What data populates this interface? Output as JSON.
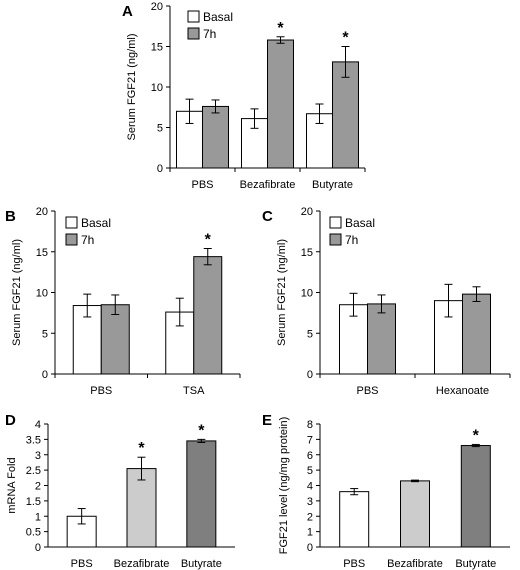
{
  "colors": {
    "basal": "#ffffff",
    "h7": "#999999",
    "bar_outline": "#000000"
  },
  "chart_data": [
    {
      "panel": "A",
      "type": "bar",
      "ylabel": "Serum FGF21 (ng/ml)",
      "ylim": [
        0,
        20
      ],
      "yticks": [
        "0",
        "5",
        "10",
        "15",
        "20"
      ],
      "categories": [
        "PBS",
        "Bezafibrate",
        "Butyrate"
      ],
      "series": [
        {
          "name": "Basal",
          "values": [
            7.0,
            6.1,
            6.7
          ],
          "errors": [
            1.5,
            1.2,
            1.2
          ]
        },
        {
          "name": "7h",
          "values": [
            7.6,
            15.8,
            13.1
          ],
          "errors": [
            0.8,
            0.4,
            1.9
          ]
        }
      ],
      "significance": [
        {
          "series": 1,
          "category": 1,
          "mark": "*"
        },
        {
          "series": 1,
          "category": 2,
          "mark": "*"
        }
      ],
      "legend": "top-left"
    },
    {
      "panel": "B",
      "type": "bar",
      "ylabel": "Serum FGF21 (ng/ml)",
      "ylim": [
        0,
        20
      ],
      "yticks": [
        "0",
        "5",
        "10",
        "15",
        "20"
      ],
      "categories": [
        "PBS",
        "TSA"
      ],
      "series": [
        {
          "name": "Basal",
          "values": [
            8.4,
            7.6
          ],
          "errors": [
            1.4,
            1.7
          ]
        },
        {
          "name": "7h",
          "values": [
            8.5,
            14.4
          ],
          "errors": [
            1.2,
            1.0
          ]
        }
      ],
      "significance": [
        {
          "series": 1,
          "category": 1,
          "mark": "*"
        }
      ],
      "legend": "top-left"
    },
    {
      "panel": "C",
      "type": "bar",
      "ylabel": "Serum FGF21 (ng/ml)",
      "ylim": [
        0,
        20
      ],
      "yticks": [
        "0",
        "5",
        "10",
        "15",
        "20"
      ],
      "categories": [
        "PBS",
        "Hexanoate"
      ],
      "series": [
        {
          "name": "Basal",
          "values": [
            8.5,
            9.0
          ],
          "errors": [
            1.4,
            2.0
          ]
        },
        {
          "name": "7h",
          "values": [
            8.6,
            9.8
          ],
          "errors": [
            1.1,
            0.9
          ]
        }
      ],
      "significance": [],
      "legend": "top-left"
    },
    {
      "panel": "D",
      "type": "bar",
      "ylabel": "mRNA Fold",
      "ylim": [
        0,
        4
      ],
      "yticks": [
        "0",
        "0.5",
        "1",
        "1.5",
        "2",
        "2.5",
        "3",
        "3.5",
        "4"
      ],
      "categories": [
        "PBS",
        "Bezafibrate",
        "Butyrate"
      ],
      "values": [
        1.0,
        2.55,
        3.45
      ],
      "errors": [
        0.25,
        0.37,
        0.05
      ],
      "bar_colors": [
        "#ffffff",
        "#cccccc",
        "#7f7f7f"
      ],
      "significance": [
        {
          "category": 1,
          "mark": "*"
        },
        {
          "category": 2,
          "mark": "*"
        }
      ]
    },
    {
      "panel": "E",
      "type": "bar",
      "ylabel": "FGF21 level (ng/mg protein)",
      "ylim": [
        0,
        8
      ],
      "yticks": [
        "0",
        "1",
        "2",
        "3",
        "4",
        "5",
        "6",
        "7",
        "8"
      ],
      "categories": [
        "PBS",
        "Bezafibrate",
        "Butyrate"
      ],
      "values": [
        3.6,
        4.3,
        6.6
      ],
      "errors": [
        0.2,
        0.05,
        0.07
      ],
      "bar_colors": [
        "#ffffff",
        "#cccccc",
        "#7f7f7f"
      ],
      "significance": [
        {
          "category": 2,
          "mark": "*"
        }
      ]
    }
  ]
}
